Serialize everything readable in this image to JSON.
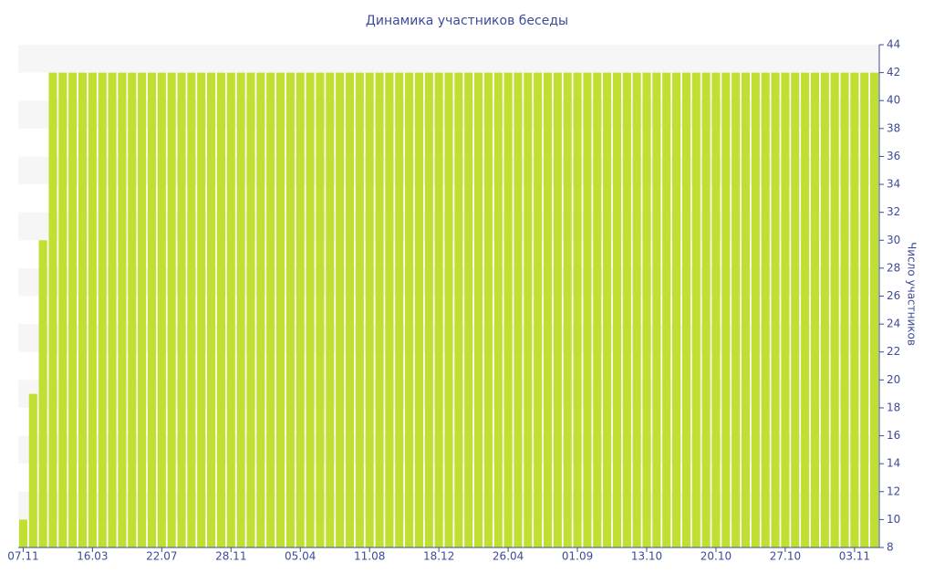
{
  "chart_data": {
    "type": "bar",
    "title": "Динамика участников беседы",
    "y_axis_label": "Число участников",
    "categories": [
      "07.11",
      null,
      null,
      null,
      null,
      null,
      null,
      "16.03",
      null,
      null,
      null,
      null,
      null,
      null,
      "22.07",
      null,
      null,
      null,
      null,
      null,
      null,
      "28.11",
      null,
      null,
      null,
      null,
      null,
      null,
      "05.04",
      null,
      null,
      null,
      null,
      null,
      null,
      "11.08",
      null,
      null,
      null,
      null,
      null,
      null,
      "18.12",
      null,
      null,
      null,
      null,
      null,
      null,
      "26.04",
      null,
      null,
      null,
      null,
      null,
      null,
      "01.09",
      null,
      null,
      null,
      null,
      null,
      null,
      "13.10",
      null,
      null,
      null,
      null,
      null,
      null,
      "20.10",
      null,
      null,
      null,
      null,
      null,
      null,
      "27.10",
      null,
      null,
      null,
      null,
      null,
      null,
      "03.11",
      null,
      null
    ],
    "values": [
      10,
      19,
      30,
      42,
      42,
      42,
      42,
      42,
      42,
      42,
      42,
      42,
      42,
      42,
      42,
      42,
      42,
      42,
      42,
      42,
      42,
      42,
      42,
      42,
      42,
      42,
      42,
      42,
      42,
      42,
      42,
      42,
      42,
      42,
      42,
      42,
      42,
      42,
      42,
      42,
      42,
      42,
      42,
      42,
      42,
      42,
      42,
      42,
      42,
      42,
      42,
      42,
      42,
      42,
      42,
      42,
      42,
      42,
      42,
      42,
      42,
      42,
      42,
      42,
      42,
      42,
      42,
      42,
      42,
      42,
      42,
      42,
      42,
      42,
      42,
      42,
      42,
      42,
      42,
      42,
      42,
      42,
      42,
      42,
      42,
      42,
      42
    ],
    "color": "#bfe032",
    "ylim": [
      8,
      44
    ],
    "yticks": [
      8,
      10,
      12,
      14,
      16,
      18,
      20,
      22,
      24,
      26,
      28,
      30,
      32,
      34,
      36,
      38,
      40,
      42,
      44
    ],
    "y_axis_side": "right",
    "grid_bands": true
  }
}
